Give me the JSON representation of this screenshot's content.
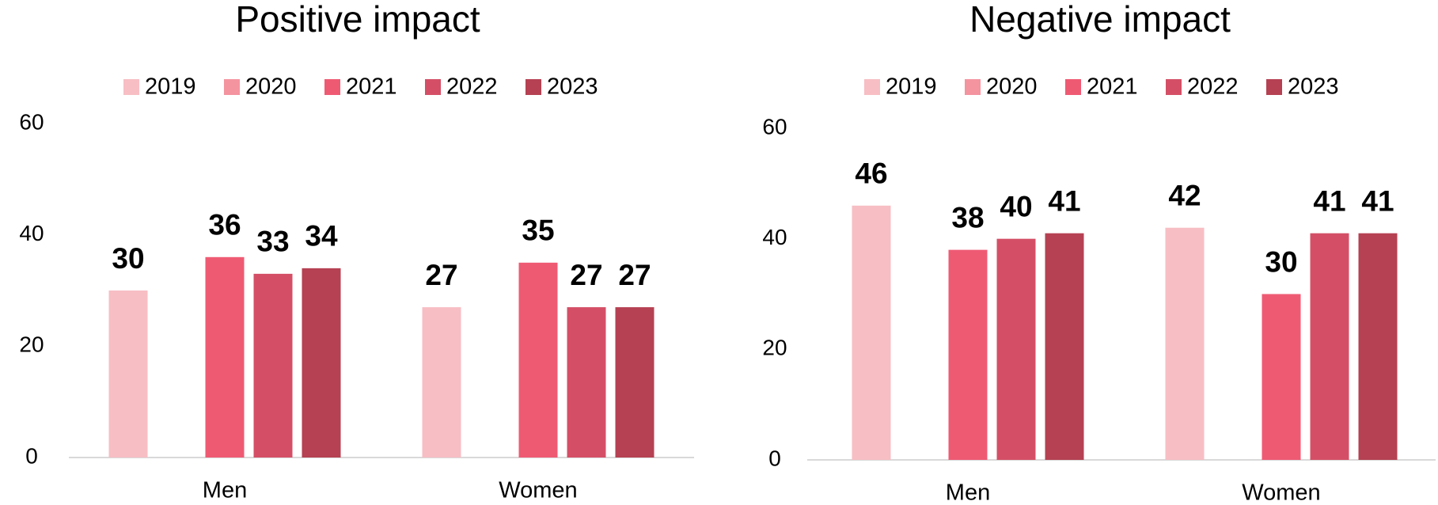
{
  "chart_data": [
    {
      "type": "bar",
      "title": "Positive impact",
      "categories": [
        "Men",
        "Women"
      ],
      "series": [
        {
          "name": "2019",
          "color": "#f7bec4",
          "values": [
            30,
            27
          ]
        },
        {
          "name": "2020",
          "color": "#f4949f",
          "values": [
            null,
            null
          ]
        },
        {
          "name": "2021",
          "color": "#ef5a73",
          "values": [
            36,
            35
          ]
        },
        {
          "name": "2022",
          "color": "#d44f66",
          "values": [
            33,
            27
          ]
        },
        {
          "name": "2023",
          "color": "#b54152",
          "values": [
            34,
            27
          ]
        }
      ],
      "ylim": [
        0,
        60
      ],
      "yticks": [
        0,
        20,
        40,
        60
      ],
      "legend": "top"
    },
    {
      "type": "bar",
      "title": "Negative impact",
      "categories": [
        "Men",
        "Women"
      ],
      "series": [
        {
          "name": "2019",
          "color": "#f7bec4",
          "values": [
            46,
            42
          ]
        },
        {
          "name": "2020",
          "color": "#f4949f",
          "values": [
            null,
            null
          ]
        },
        {
          "name": "2021",
          "color": "#ef5a73",
          "values": [
            38,
            30
          ]
        },
        {
          "name": "2022",
          "color": "#d44f66",
          "values": [
            40,
            41
          ]
        },
        {
          "name": "2023",
          "color": "#b54152",
          "values": [
            41,
            41
          ]
        }
      ],
      "ylim": [
        0,
        60
      ],
      "yticks": [
        0,
        20,
        40,
        60
      ],
      "legend": "top"
    }
  ]
}
